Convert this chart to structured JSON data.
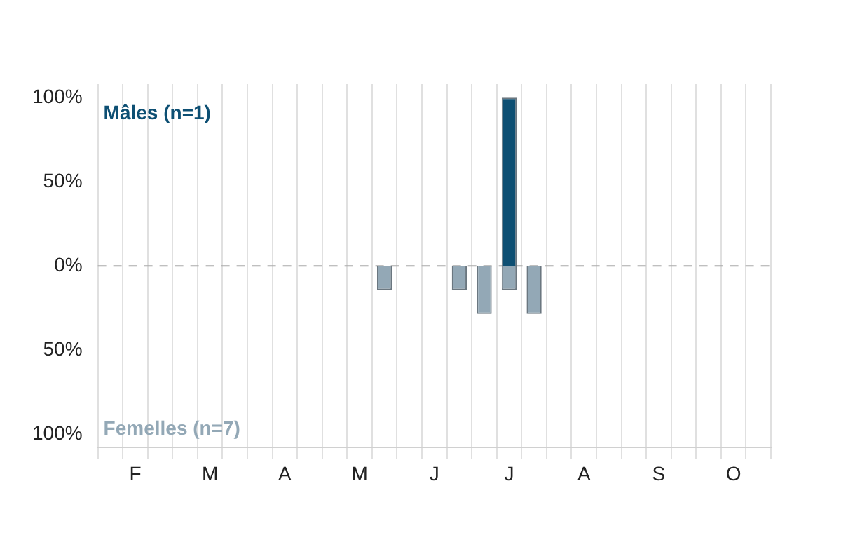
{
  "chart_data": {
    "type": "bar",
    "stacked": true,
    "categories": [
      null,
      "F",
      null,
      null,
      "M",
      null,
      null,
      "A",
      null,
      null,
      "M",
      null,
      null,
      "J",
      null,
      null,
      "J",
      null,
      null,
      "A",
      null,
      null,
      "S",
      null,
      null,
      "O",
      null
    ],
    "series": [
      {
        "name": "Mâles (n=1)",
        "color": "#0d4f73",
        "values": [
          null,
          null,
          null,
          null,
          null,
          null,
          null,
          null,
          null,
          null,
          null,
          null,
          null,
          null,
          null,
          null,
          100,
          null,
          null,
          null,
          null,
          null,
          null,
          null,
          null,
          null,
          null
        ]
      },
      {
        "name": "Femelles (n=7)",
        "color": "#93a8b6",
        "values": [
          null,
          null,
          null,
          null,
          null,
          null,
          null,
          null,
          null,
          null,
          null,
          -14.3,
          null,
          null,
          -14.3,
          -28.6,
          -14.3,
          -28.6,
          null,
          null,
          null,
          null,
          null,
          null,
          null,
          null,
          null
        ]
      }
    ],
    "ylim": [
      -108,
      108
    ],
    "yticks": [
      {
        "value": 100,
        "label": "100%"
      },
      {
        "value": 50,
        "label": "50%"
      },
      {
        "value": 0,
        "label": "0%"
      },
      {
        "value": -50,
        "label": "50%"
      },
      {
        "value": -100,
        "label": "100%"
      }
    ],
    "grid": "x",
    "legend": false,
    "ref_lines": [
      {
        "axis": "y",
        "value": 0,
        "color": "#aaaaaa",
        "line_style": "dashed"
      }
    ]
  }
}
